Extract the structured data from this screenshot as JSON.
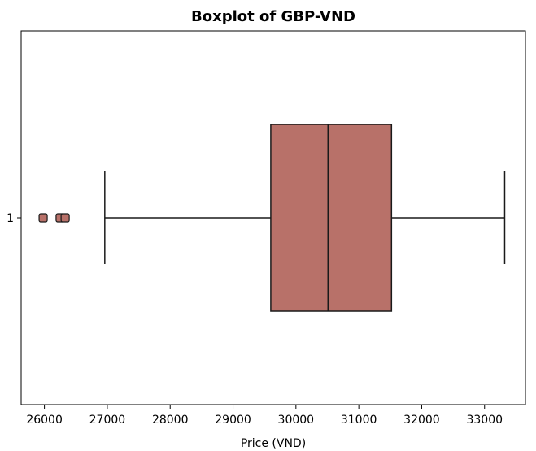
{
  "chart_data": {
    "type": "boxplot",
    "orientation": "horizontal",
    "title": "Boxplot of GBP-VND",
    "xlabel": "Price (VND)",
    "ylabel": "",
    "xlim": [
      25630,
      33650
    ],
    "x_ticks": [
      26000,
      27000,
      28000,
      29000,
      30000,
      31000,
      32000,
      33000
    ],
    "categories": [
      "1"
    ],
    "boxes": [
      {
        "category": "1",
        "whisker_low": 26960,
        "q1": 29600,
        "median": 30510,
        "q3": 31520,
        "whisker_high": 33320,
        "outliers": [
          25980,
          26250,
          26330
        ]
      }
    ],
    "colors": {
      "box_fill": "#b87169",
      "stroke": "#1a1a1a",
      "outlier_fill": "#b87169"
    },
    "grid": false
  }
}
